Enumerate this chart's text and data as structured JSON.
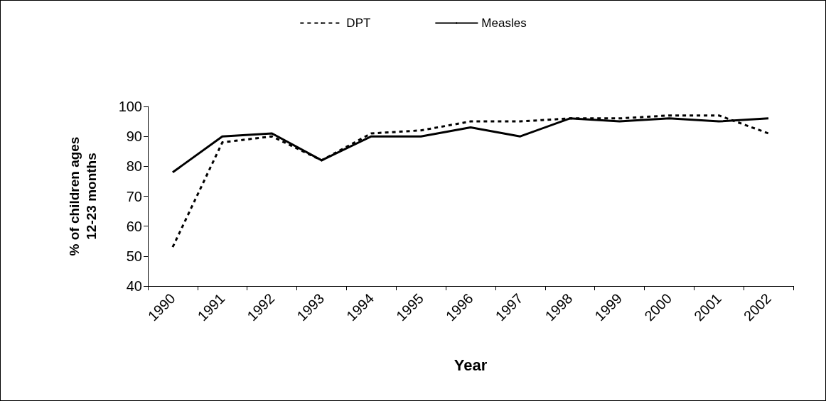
{
  "chart_data": {
    "type": "line",
    "xlabel": "Year",
    "ylabel": "% of children ages\n12-23 months",
    "categories": [
      "1990",
      "1991",
      "1992",
      "1993",
      "1994",
      "1995",
      "1996",
      "1997",
      "1998",
      "1999",
      "2000",
      "2001",
      "2002"
    ],
    "series": [
      {
        "name": "DPT",
        "color": "#000000",
        "line_style": "dashed",
        "values": [
          53,
          88,
          90,
          82,
          91,
          92,
          95,
          95,
          96,
          96,
          97,
          97,
          91
        ]
      },
      {
        "name": "Measles",
        "color": "#000000",
        "line_style": "solid",
        "values": [
          78,
          90,
          91,
          82,
          90,
          90,
          93,
          90,
          96,
          95,
          96,
          95,
          96
        ]
      }
    ],
    "ylim": [
      40,
      100
    ],
    "yticks": [
      40,
      50,
      60,
      70,
      80,
      90,
      100
    ],
    "grid": false,
    "legend": "top",
    "marker": "none"
  }
}
